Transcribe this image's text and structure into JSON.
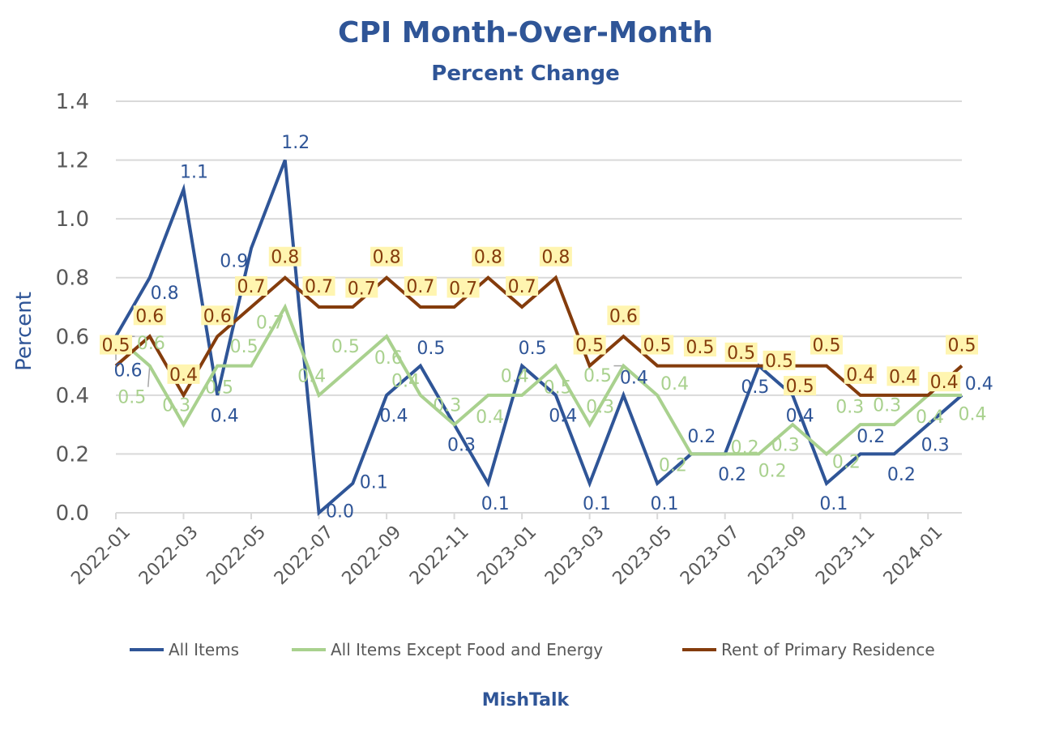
{
  "chart_data": {
    "type": "line",
    "title": "CPI Month-Over-Month",
    "subtitle": "Percent Change",
    "ylabel": "Percent",
    "xlabel": "",
    "footer": "MishTalk",
    "ylim": [
      0,
      1.4
    ],
    "yticks": [
      "0.0",
      "0.2",
      "0.4",
      "0.6",
      "0.8",
      "1.0",
      "1.2",
      "1.4"
    ],
    "grid": true,
    "legend_position": "bottom",
    "x": [
      "2022-01",
      "2022-02",
      "2022-03",
      "2022-04",
      "2022-05",
      "2022-06",
      "2022-07",
      "2022-08",
      "2022-09",
      "2022-10",
      "2022-11",
      "2022-12",
      "2023-01",
      "2023-02",
      "2023-03",
      "2023-04",
      "2023-05",
      "2023-06",
      "2023-07",
      "2023-08",
      "2023-09",
      "2023-10",
      "2023-11",
      "2023-12",
      "2024-01",
      "2024-02"
    ],
    "xtick_labels": [
      "2022-01",
      "2022-03",
      "2022-05",
      "2022-07",
      "2022-09",
      "2022-11",
      "2023-01",
      "2023-03",
      "2023-05",
      "2023-07",
      "2023-09",
      "2023-11",
      "2024-01"
    ],
    "series": [
      {
        "name": "All Items",
        "color": "#2F5597",
        "values": [
          0.6,
          0.8,
          1.1,
          0.4,
          0.9,
          1.2,
          0.0,
          0.1,
          0.4,
          0.5,
          0.3,
          0.1,
          0.5,
          0.4,
          0.1,
          0.4,
          0.1,
          0.2,
          0.2,
          0.5,
          0.4,
          0.1,
          0.2,
          0.2,
          0.3,
          0.4
        ]
      },
      {
        "name": "All Items Except Food and Energy",
        "color": "#A9D18E",
        "values": [
          0.6,
          0.5,
          0.3,
          0.5,
          0.5,
          0.7,
          0.4,
          0.5,
          0.6,
          0.4,
          0.3,
          0.4,
          0.4,
          0.5,
          0.3,
          0.5,
          0.4,
          0.2,
          0.2,
          0.2,
          0.3,
          0.2,
          0.3,
          0.3,
          0.4,
          0.4
        ]
      },
      {
        "name": "Rent of Primary Residence",
        "color": "#843C0C",
        "values": [
          0.5,
          0.6,
          0.4,
          0.6,
          0.7,
          0.8,
          0.7,
          0.7,
          0.8,
          0.7,
          0.7,
          0.8,
          0.7,
          0.8,
          0.5,
          0.6,
          0.5,
          0.5,
          0.5,
          0.5,
          0.5,
          0.5,
          0.4,
          0.4,
          0.4,
          0.5
        ]
      }
    ],
    "label_highlight_color": "#FFF5B0"
  }
}
